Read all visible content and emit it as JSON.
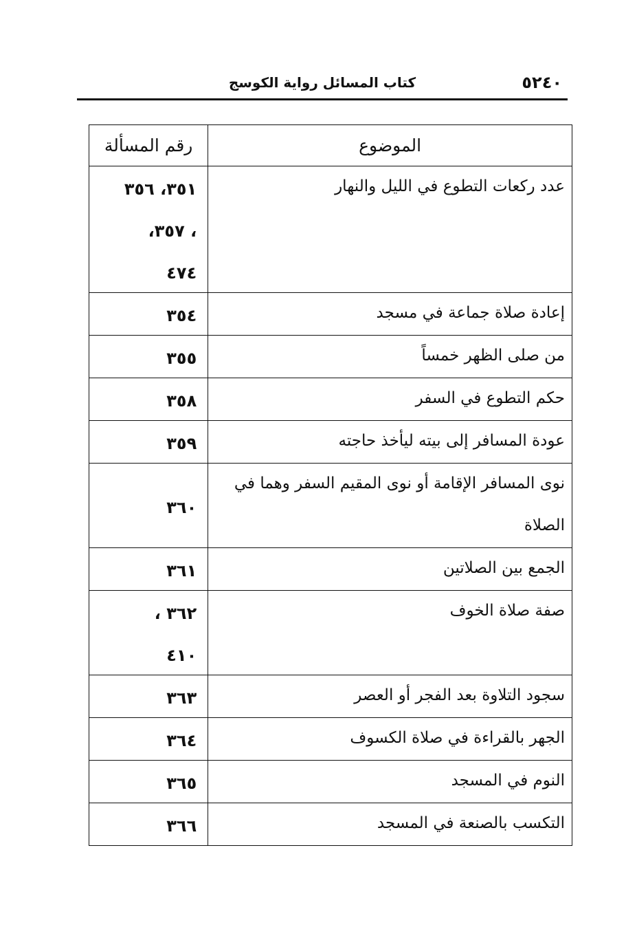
{
  "running_head": {
    "page_number": "٥٢٤٠",
    "book_title": "كتاب المسائل رواية الكوسج"
  },
  "table": {
    "headers": {
      "subject": "الموضوع",
      "issue_number": "رقم المسألة"
    },
    "rows": [
      {
        "subject": [
          "عدد ركعات التطوع في الليل والنهار"
        ],
        "numbers": [
          "٣٥١، ٣٥٦",
          "، ٣٥٧،",
          "٤٧٤"
        ]
      },
      {
        "subject": [
          "إعادة صلاة جماعة في مسجد"
        ],
        "numbers": [
          "٣٥٤"
        ]
      },
      {
        "subject": [
          "من صلى الظهر خمساً"
        ],
        "numbers": [
          "٣٥٥"
        ]
      },
      {
        "subject": [
          "حكم التطوع في السفر"
        ],
        "numbers": [
          "٣٥٨"
        ]
      },
      {
        "subject": [
          "عودة المسافر إلى بيته ليأخذ حاجته"
        ],
        "numbers": [
          "٣٥٩"
        ]
      },
      {
        "subject": [
          "نوى المسافر الإقامة أو نوى المقيم السفر وهما في",
          "الصلاة"
        ],
        "numbers": [
          "٣٦٠"
        ]
      },
      {
        "subject": [
          "الجمع بين الصلاتين"
        ],
        "numbers": [
          "٣٦١"
        ]
      },
      {
        "subject": [
          "صفة صلاة الخوف"
        ],
        "numbers": [
          "٣٦٢ ،",
          "٤١٠"
        ]
      },
      {
        "subject": [
          "سجود التلاوة بعد الفجر أو العصر"
        ],
        "numbers": [
          "٣٦٣"
        ]
      },
      {
        "subject": [
          "الجهر بالقراءة في صلاة الكسوف"
        ],
        "numbers": [
          "٣٦٤"
        ]
      },
      {
        "subject": [
          "النوم في المسجد"
        ],
        "numbers": [
          "٣٦٥"
        ]
      },
      {
        "subject": [
          "التكسب بالصنعة في المسجد"
        ],
        "numbers": [
          "٣٦٦"
        ]
      }
    ]
  }
}
